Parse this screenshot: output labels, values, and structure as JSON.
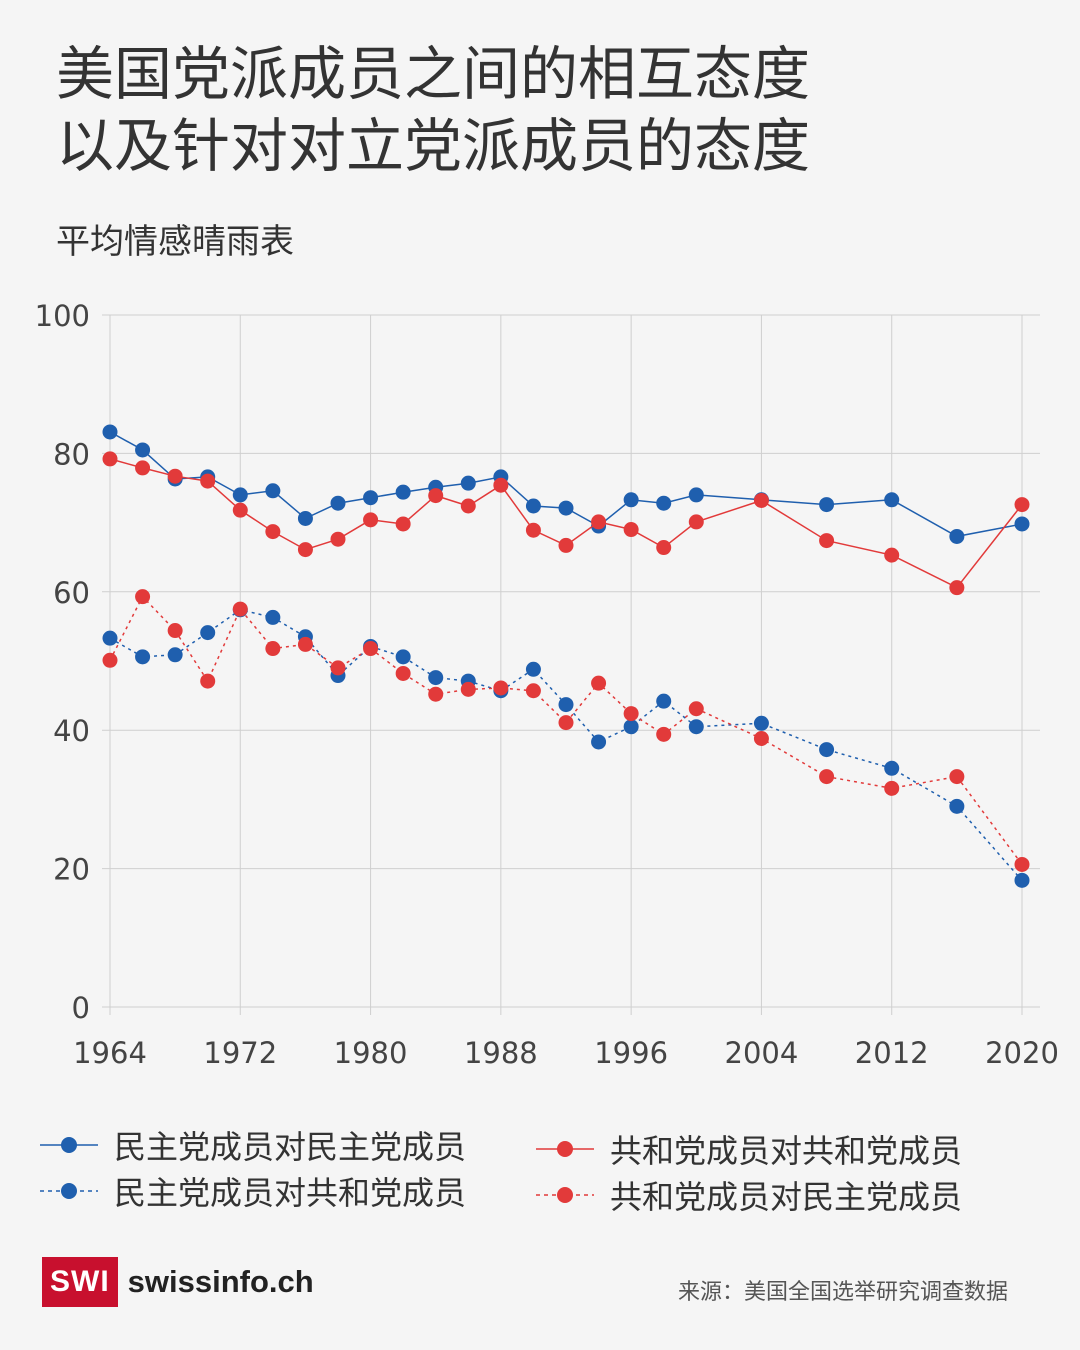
{
  "title_lines": [
    "美国党派成员之间的相互态度",
    "以及针对对立党派成员的态度"
  ],
  "subtitle": "平均情感晴雨表",
  "source": "来源：美国全国选举研究调查数据",
  "logo": {
    "box": "SWI",
    "text": "swissinfo.ch"
  },
  "colors": {
    "blue": "#1f5fae",
    "red": "#e23a3a",
    "brand": "#c8102e"
  },
  "chart_data": {
    "type": "line",
    "x_ticks": [
      1964,
      1972,
      1980,
      1988,
      1996,
      2004,
      2012,
      2020
    ],
    "y_ticks": [
      0,
      20,
      40,
      60,
      80,
      100
    ],
    "xlim": [
      1964,
      2020
    ],
    "ylim": [
      0,
      100
    ],
    "grid": true,
    "legend_position": "bottom",
    "series": [
      {
        "name": "民主党成员对民主党成员",
        "color": "#1f5fae",
        "dash": "solid",
        "x": [
          1964,
          1966,
          1968,
          1970,
          1972,
          1974,
          1976,
          1978,
          1980,
          1982,
          1984,
          1986,
          1988,
          1990,
          1992,
          1994,
          1996,
          1998,
          2000,
          2004,
          2008,
          2012,
          2016,
          2020
        ],
        "y": [
          83.1,
          80.5,
          76.3,
          76.6,
          74.0,
          74.6,
          70.6,
          72.8,
          73.6,
          74.4,
          75.1,
          75.7,
          76.6,
          72.4,
          72.1,
          69.5,
          73.3,
          72.8,
          74.0,
          73.3,
          72.6,
          73.3,
          68.0,
          69.8
        ]
      },
      {
        "name": "民主党成员对共和党成员",
        "color": "#1f5fae",
        "dash": "dashed",
        "x": [
          1964,
          1966,
          1968,
          1970,
          1972,
          1974,
          1976,
          1978,
          1980,
          1982,
          1984,
          1986,
          1988,
          1990,
          1992,
          1994,
          1996,
          1998,
          2000,
          2004,
          2008,
          2012,
          2016,
          2020
        ],
        "y": [
          53.3,
          50.6,
          50.9,
          54.1,
          57.4,
          56.3,
          53.5,
          47.9,
          52.1,
          50.6,
          47.6,
          47.1,
          45.7,
          48.8,
          43.7,
          38.3,
          40.5,
          44.2,
          40.5,
          41.0,
          37.2,
          34.5,
          29.0,
          18.3
        ]
      },
      {
        "name": "共和党成员对共和党成员",
        "color": "#e23a3a",
        "dash": "solid",
        "x": [
          1964,
          1966,
          1968,
          1970,
          1972,
          1974,
          1976,
          1978,
          1980,
          1982,
          1984,
          1986,
          1988,
          1990,
          1992,
          1994,
          1996,
          1998,
          2000,
          2004,
          2008,
          2012,
          2016,
          2020
        ],
        "y": [
          79.2,
          77.9,
          76.7,
          76.0,
          71.8,
          68.7,
          66.1,
          67.6,
          70.4,
          69.8,
          73.9,
          72.4,
          75.4,
          68.9,
          66.7,
          70.1,
          69.0,
          66.4,
          70.1,
          73.2,
          67.4,
          65.3,
          60.6,
          72.6
        ]
      },
      {
        "name": "共和党成员对民主党成员",
        "color": "#e23a3a",
        "dash": "dashed",
        "x": [
          1964,
          1966,
          1968,
          1970,
          1972,
          1974,
          1976,
          1978,
          1980,
          1982,
          1984,
          1986,
          1988,
          1990,
          1992,
          1994,
          1996,
          1998,
          2000,
          2004,
          2008,
          2012,
          2016,
          2020
        ],
        "y": [
          50.1,
          59.3,
          54.4,
          47.1,
          57.5,
          51.8,
          52.4,
          49.0,
          51.8,
          48.2,
          45.2,
          45.9,
          46.1,
          45.7,
          41.1,
          46.8,
          42.4,
          39.4,
          43.1,
          38.8,
          33.3,
          31.6,
          33.3,
          20.6
        ]
      }
    ]
  }
}
